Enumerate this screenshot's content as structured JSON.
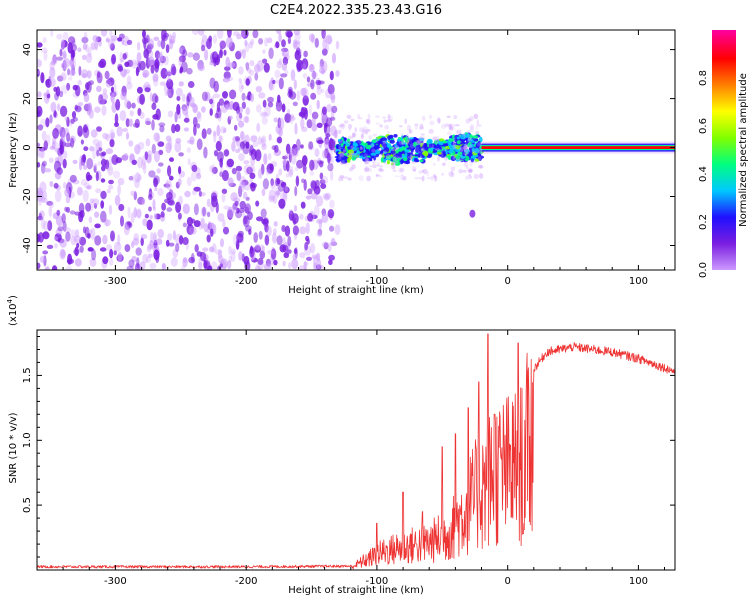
{
  "title": "C2E4.2022.335.23.43.G16",
  "chart_data": [
    {
      "type": "heatmap",
      "xlabel": "Height of straight line (km)",
      "ylabel": "Frequency (Hz)",
      "xlim": [
        -360,
        128
      ],
      "ylim": [
        -50,
        48
      ],
      "xticks": [
        -300,
        -200,
        -100,
        0,
        100
      ],
      "yticks": [
        40,
        20,
        0,
        -20,
        -40
      ],
      "colorbar": {
        "label": "Normalized spectral amplitude",
        "range": [
          0.0,
          1.0
        ],
        "ticks": [
          "0.0",
          "0.2",
          "0.4",
          "0.6",
          "0.8"
        ],
        "colormap": [
          "#cc99ff",
          "#7a1ee0",
          "#2010ff",
          "#00c8ff",
          "#00ff80",
          "#80ff00",
          "#ffff00",
          "#ff8000",
          "#ff0000",
          "#ff00a0"
        ]
      },
      "regions": [
        {
          "x_range": [
            -360,
            -130
          ],
          "f_range": [
            -50,
            48
          ],
          "amplitude": 0.05
        },
        {
          "x_range": [
            -130,
            -20
          ],
          "f_range": [
            -12,
            6
          ],
          "amplitude": 0.35
        },
        {
          "x_range": [
            -20,
            128
          ],
          "f_range": [
            -0.5,
            0.5
          ],
          "amplitude": 0.9
        }
      ],
      "features": [
        {
          "x": -27,
          "f": -27,
          "amplitude": 0.1
        }
      ]
    },
    {
      "type": "line",
      "xlabel": "Height of straight line (km)",
      "ylabel": "SNR (10 * v/v)",
      "ylabel_exponent": "(x10",
      "ylabel_exponent_power": "4",
      "ylabel_exponent_close": ")",
      "xlim": [
        -360,
        128
      ],
      "ylim": [
        0,
        18500
      ],
      "xticks": [
        -300,
        -200,
        -100,
        0,
        100
      ],
      "yticks": [
        5000,
        10000,
        15000
      ],
      "ytick_labels": [
        "0.5",
        "1.0",
        "1.5"
      ],
      "series": [
        {
          "color": "#ee3333",
          "envelope": [
            {
              "x": -360,
              "y": 250
            },
            {
              "x": -200,
              "y": 250
            },
            {
              "x": -120,
              "y": 300
            },
            {
              "x": -110,
              "y": 1000
            },
            {
              "x": -95,
              "y": 2000
            },
            {
              "x": -80,
              "y": 2500
            },
            {
              "x": -60,
              "y": 3000
            },
            {
              "x": -45,
              "y": 4000
            },
            {
              "x": -30,
              "y": 7000
            },
            {
              "x": -20,
              "y": 9000
            },
            {
              "x": -10,
              "y": 10500
            },
            {
              "x": 0,
              "y": 11000
            },
            {
              "x": 10,
              "y": 11500
            },
            {
              "x": 20,
              "y": 15500
            },
            {
              "x": 30,
              "y": 16800
            },
            {
              "x": 40,
              "y": 17000
            },
            {
              "x": 50,
              "y": 17200
            },
            {
              "x": 80,
              "y": 16800
            },
            {
              "x": 100,
              "y": 16300
            },
            {
              "x": 128,
              "y": 15300
            }
          ],
          "spikes": [
            {
              "x": -100,
              "y": 3600
            },
            {
              "x": -80,
              "y": 6000
            },
            {
              "x": -65,
              "y": 4500
            },
            {
              "x": -50,
              "y": 9500
            },
            {
              "x": -40,
              "y": 10500
            },
            {
              "x": -30,
              "y": 12500
            },
            {
              "x": -22,
              "y": 14500
            },
            {
              "x": -15,
              "y": 18200
            },
            {
              "x": -10,
              "y": 12000
            },
            {
              "x": 8,
              "y": 17500
            },
            {
              "x": 12,
              "y": 2800
            }
          ]
        }
      ]
    }
  ]
}
